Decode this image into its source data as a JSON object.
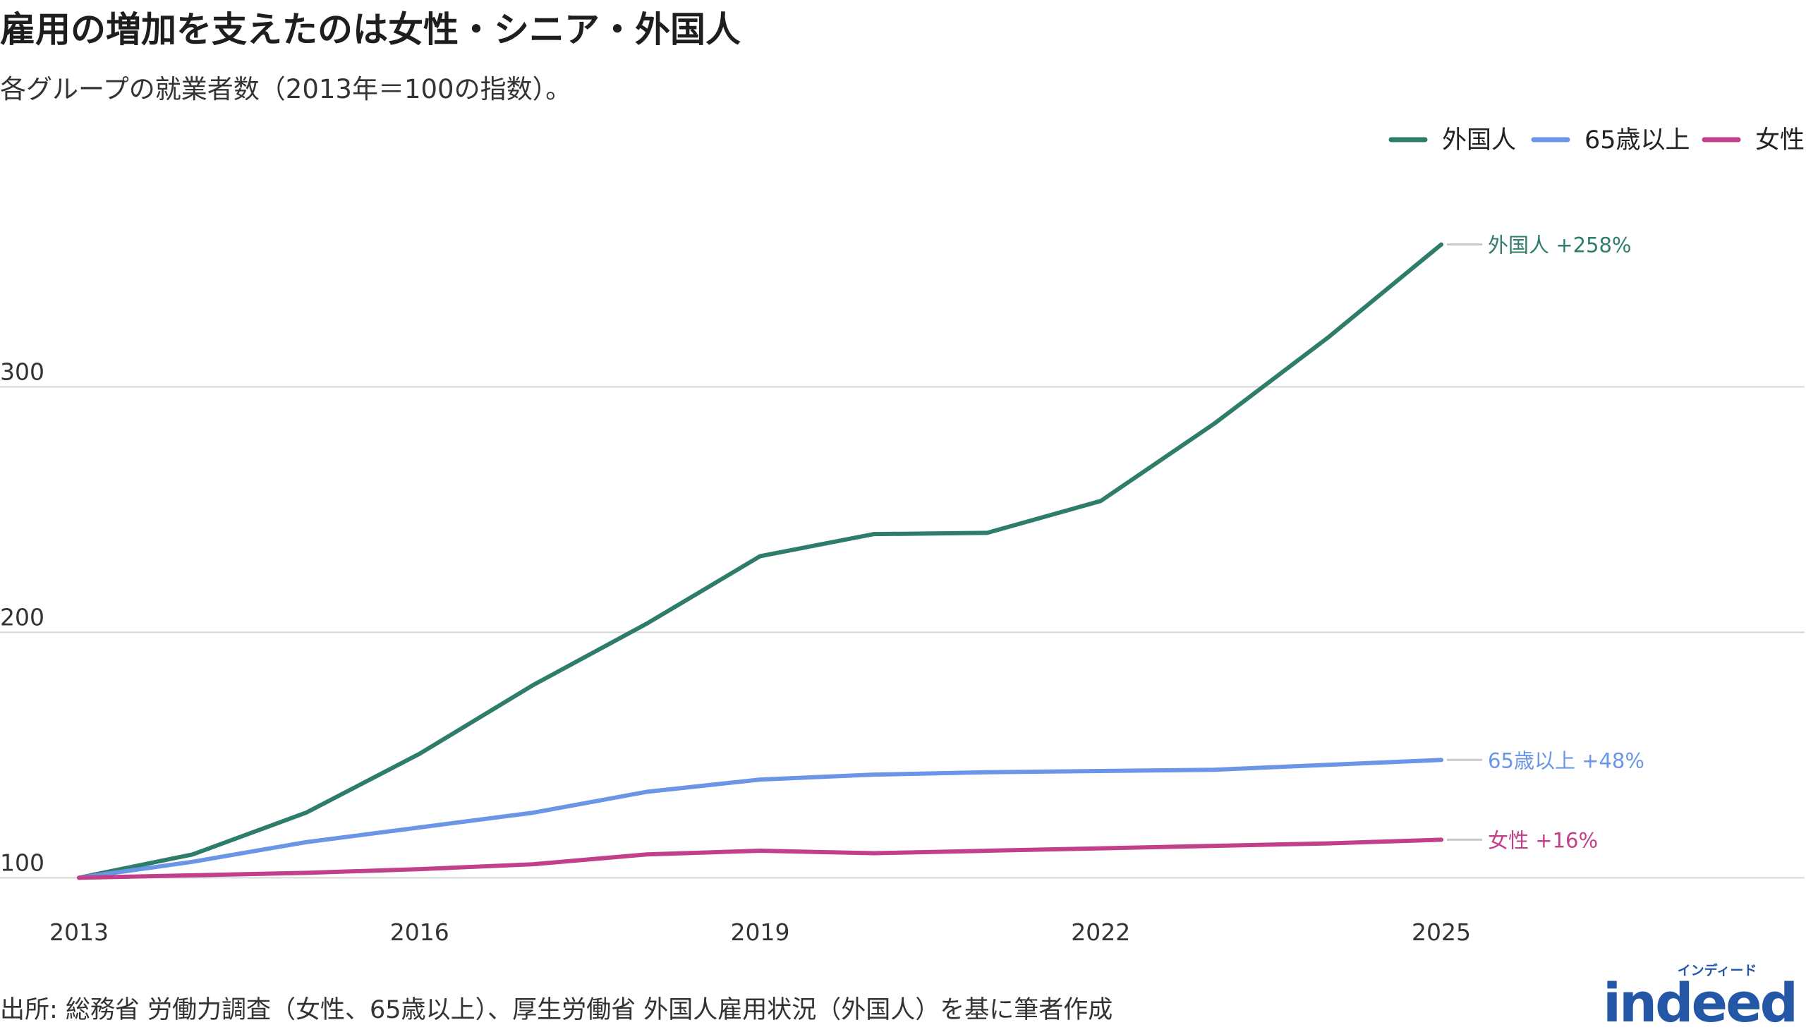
{
  "title": "雇用の増加を支えたのは女性・シニア・外国人",
  "subtitle": "各グループの就業者数（2013年＝100の指数）。",
  "source": "出所: 総務省 労働力調査（女性、65歳以上）、厚生労働省 外国人雇用状況（外国人）を基に筆者作成",
  "logo": {
    "kana": "インディード",
    "wordmark": "indeed",
    "color": "#2557a7"
  },
  "legend": {
    "position": "top-right",
    "items": [
      {
        "label": "外国人",
        "color": "#2e7d6b"
      },
      {
        "label": "65歳以上",
        "color": "#6b95e6"
      },
      {
        "label": "女性",
        "color": "#c2408a"
      }
    ]
  },
  "chart_data": {
    "type": "line",
    "x": [
      2013,
      2014,
      2015,
      2016,
      2017,
      2018,
      2019,
      2020,
      2021,
      2022,
      2023,
      2024,
      2025
    ],
    "xticks": [
      2013,
      2016,
      2019,
      2022,
      2025
    ],
    "yticks": [
      100,
      200,
      300
    ],
    "xlim": [
      2013,
      2028.2
    ],
    "ylim": [
      84,
      380
    ],
    "grid": true,
    "series": [
      {
        "name": "外国人",
        "color": "#2e7d6b",
        "end_label": "外国人 +258%",
        "values": [
          100,
          109.5,
          126.5,
          150.5,
          178.5,
          203.5,
          231,
          240,
          240.5,
          253.5,
          285,
          320,
          358
        ]
      },
      {
        "name": "65歳以上",
        "color": "#6b95e6",
        "end_label": "65歳以上 +48%",
        "values": [
          100,
          106.5,
          114.5,
          120.5,
          126.5,
          135,
          140,
          142,
          143,
          143.5,
          144,
          146,
          148
        ]
      },
      {
        "name": "女性",
        "color": "#c2408a",
        "end_label": "女性 +16%",
        "values": [
          100,
          101,
          102,
          103.5,
          105.5,
          109.5,
          111,
          110,
          111,
          112,
          113,
          114,
          115.5
        ]
      }
    ]
  }
}
